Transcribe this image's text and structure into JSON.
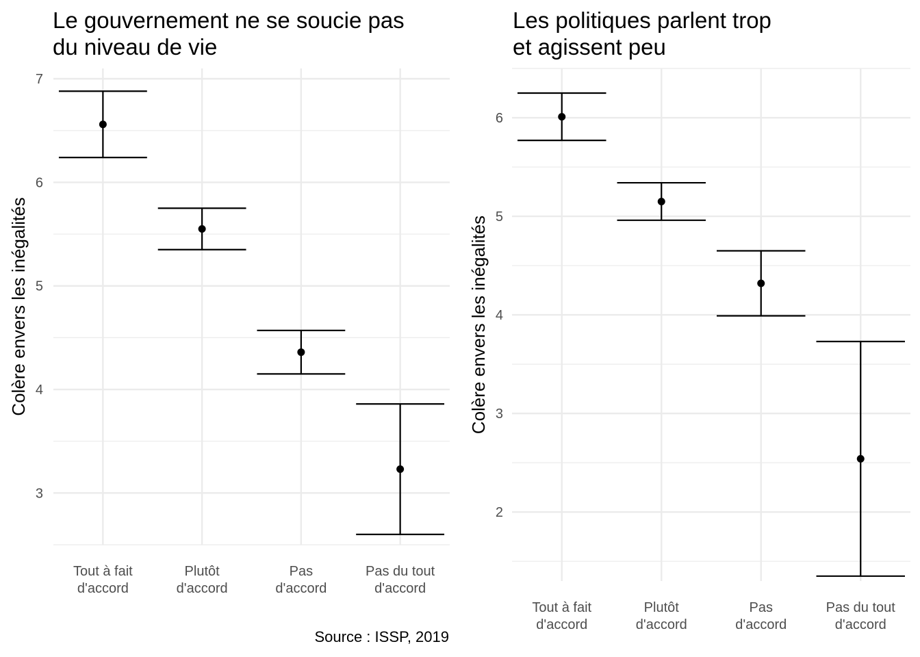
{
  "chart_data": [
    {
      "type": "errorbar",
      "title": "Le gouvernement ne se soucie pas\ndu niveau de vie",
      "ylabel": "Colère envers les inégalités",
      "xlabel": "",
      "categories": [
        "Tout à fait\nd'accord",
        "Plutôt\nd'accord",
        "Pas\nd'accord",
        "Pas du tout\nd'accord"
      ],
      "values": [
        6.56,
        5.55,
        4.36,
        3.23
      ],
      "lower": [
        6.24,
        5.35,
        4.15,
        2.6
      ],
      "upper": [
        6.88,
        5.75,
        4.57,
        3.86
      ],
      "ylim": [
        2.5,
        7.1
      ],
      "yticks": [
        3,
        4,
        5,
        6,
        7
      ],
      "grid": true,
      "color": "#000000",
      "gridColor": "#ebebeb"
    },
    {
      "type": "errorbar",
      "title": "Les politiques parlent trop\net agissent peu",
      "ylabel": "Colère envers les inégalités",
      "xlabel": "",
      "categories": [
        "Tout à fait\nd'accord",
        "Plutôt\nd'accord",
        "Pas\nd'accord",
        "Pas du tout\nd'accord"
      ],
      "values": [
        6.01,
        5.15,
        4.32,
        2.54
      ],
      "lower": [
        5.77,
        4.96,
        3.99,
        1.35
      ],
      "upper": [
        6.25,
        5.34,
        4.65,
        3.73
      ],
      "ylim": [
        1.3,
        6.5
      ],
      "yticks": [
        2,
        3,
        4,
        5,
        6
      ],
      "grid": true,
      "color": "#000000",
      "gridColor": "#ebebeb"
    }
  ],
  "caption": "Source : ISSP, 2019"
}
